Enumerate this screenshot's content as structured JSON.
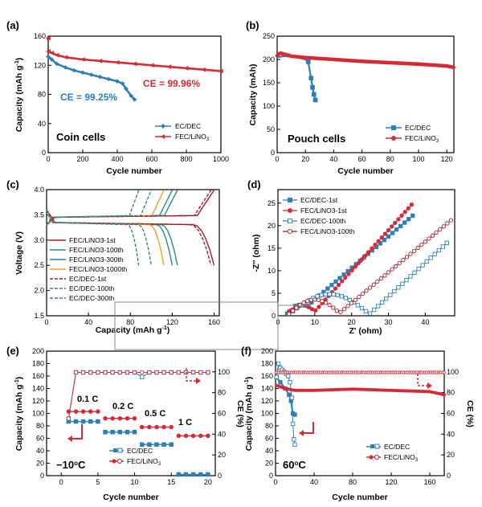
{
  "colors": {
    "blue": "#2e7fb8",
    "red": "#d62a35",
    "teal": "#2a8a8a",
    "orange": "#f0a020",
    "darkred": "#a01e28"
  },
  "chart_data": [
    {
      "panel": "(a)",
      "type": "line",
      "xlabel": "Cycle number",
      "ylabel": "Capacity (mAh g-1)",
      "xlim": [
        0,
        1000
      ],
      "ylim": [
        0,
        160
      ],
      "xticks": [
        0,
        200,
        400,
        600,
        800,
        1000
      ],
      "yticks": [
        0,
        40,
        80,
        120,
        160
      ],
      "annotations": [
        {
          "text": "CE = 99.25%",
          "color": "blue"
        },
        {
          "text": "CE = 99.96%",
          "color": "red"
        },
        {
          "text": "Coin cells",
          "color": "black"
        }
      ],
      "legend": [
        "EC/DEC",
        "FEC/LiNO3"
      ],
      "series": [
        {
          "name": "EC/DEC",
          "color": "blue",
          "x": [
            0,
            20,
            50,
            100,
            150,
            200,
            250,
            300,
            350,
            400,
            430,
            450,
            480,
            500
          ],
          "y": [
            132,
            128,
            122,
            117,
            113,
            110,
            107,
            104,
            101,
            98,
            95,
            88,
            78,
            73
          ]
        },
        {
          "name": "FEC/LiNO3",
          "color": "red",
          "x": [
            0,
            20,
            50,
            100,
            200,
            300,
            400,
            500,
            600,
            700,
            800,
            900,
            1000
          ],
          "y": [
            139,
            137,
            134,
            131,
            128,
            126,
            124,
            122,
            120,
            118,
            116,
            114,
            112
          ]
        }
      ]
    },
    {
      "panel": "(b)",
      "type": "line",
      "xlabel": "Cycle number",
      "ylabel": "Capacity (mAh)",
      "xlim": [
        0,
        125
      ],
      "ylim": [
        0,
        250
      ],
      "xticks": [
        0,
        20,
        40,
        60,
        80,
        100,
        120
      ],
      "yticks": [
        0,
        50,
        100,
        150,
        200,
        250
      ],
      "annotations": [
        {
          "text": "Pouch cells",
          "color": "black"
        }
      ],
      "legend": [
        "EC/DEC",
        "FEC/LiNO3"
      ],
      "series": [
        {
          "name": "EC/DEC",
          "color": "blue",
          "x": [
            0,
            5,
            10,
            15,
            20,
            22,
            24,
            25,
            26,
            27
          ],
          "y": [
            205,
            207,
            206,
            204,
            200,
            195,
            160,
            140,
            125,
            113
          ]
        },
        {
          "name": "FEC/LiNO3",
          "color": "red",
          "x": [
            0,
            2,
            10,
            20,
            40,
            60,
            80,
            100,
            120,
            125
          ],
          "y": [
            208,
            214,
            207,
            204,
            200,
            196,
            193,
            190,
            186,
            183
          ]
        }
      ]
    },
    {
      "panel": "(c)",
      "type": "line",
      "xlabel": "Capacity (mAh g-1)",
      "ylabel": "Voltage (V)",
      "xlim": [
        0,
        165
      ],
      "ylim": [
        1.5,
        4.0
      ],
      "xticks": [
        0,
        40,
        80,
        120,
        160
      ],
      "yticks": [
        1.5,
        2.0,
        2.5,
        3.0,
        3.5,
        4.0
      ],
      "legend": [
        "FEC/LiNO3-1st",
        "FEC/LiNO3-100th",
        "FEC/LiNO3-300th",
        "FEC/LiNO3-1000th",
        "EC/DEC-1st",
        "EC/DEC-100th",
        "EC/DEC-300th"
      ]
    },
    {
      "panel": "(d)",
      "type": "scatter",
      "xlabel": "Z' (ohm)",
      "ylabel": "-Z'' (ohm)",
      "xlim": [
        0,
        48
      ],
      "ylim": [
        0,
        28
      ],
      "xticks": [
        0,
        10,
        20,
        30,
        40
      ],
      "yticks": [
        0,
        5,
        10,
        15,
        20,
        25
      ],
      "legend": [
        "EC/DEC-1st",
        "FEC/LiNO3-1st",
        "EC/DEC-100th",
        "FEC/LiNO3-100th"
      ]
    },
    {
      "panel": "(e)",
      "type": "line",
      "xlabel": "Cycle number",
      "ylabel": "Capacity (mAh g-1)",
      "y2label": "CE (%)",
      "xlim": [
        -2,
        21
      ],
      "ylim": [
        0,
        200
      ],
      "y2lim": [
        0,
        120
      ],
      "xticks": [
        0,
        5,
        10,
        15,
        20
      ],
      "yticks": [
        0,
        20,
        40,
        60,
        80,
        100,
        120,
        140,
        160,
        180,
        200
      ],
      "y2ticks": [
        0,
        20,
        40,
        60,
        80,
        100
      ],
      "annotations": [
        {
          "text": "0.1 C"
        },
        {
          "text": "0.2 C"
        },
        {
          "text": "0.5 C"
        },
        {
          "text": "1 C"
        },
        {
          "text": "−10oC"
        }
      ],
      "legend": [
        "EC/DEC",
        "FEC/LiNO3"
      ],
      "series": [
        {
          "name": "EC/DEC",
          "color": "blue",
          "x": [
            1,
            2,
            3,
            4,
            5,
            6,
            7,
            8,
            9,
            10,
            11,
            12,
            13,
            14,
            15,
            16,
            17,
            18,
            19,
            20
          ],
          "y": [
            87,
            87,
            87,
            87,
            87,
            70,
            70,
            70,
            70,
            70,
            50,
            50,
            50,
            50,
            50,
            2,
            2,
            2,
            2,
            2
          ]
        },
        {
          "name": "FEC/LiNO3",
          "color": "red",
          "x": [
            1,
            2,
            3,
            4,
            5,
            6,
            7,
            8,
            9,
            10,
            11,
            12,
            13,
            14,
            15,
            16,
            17,
            18,
            19,
            20
          ],
          "y": [
            103,
            103,
            103,
            103,
            103,
            92,
            92,
            92,
            92,
            92,
            78,
            78,
            78,
            78,
            78,
            64,
            64,
            64,
            64,
            64
          ]
        }
      ]
    },
    {
      "panel": "(f)",
      "type": "line",
      "xlabel": "Cycle number",
      "ylabel": "Capacity (mAh g-1)",
      "y2label": "CE (%)",
      "xlim": [
        0,
        175
      ],
      "ylim": [
        0,
        200
      ],
      "y2lim": [
        0,
        120
      ],
      "xticks": [
        0,
        40,
        80,
        120,
        160
      ],
      "yticks": [
        0,
        20,
        40,
        60,
        80,
        100,
        120,
        140,
        160,
        180,
        200
      ],
      "y2ticks": [
        0,
        20,
        40,
        60,
        80,
        100
      ],
      "annotations": [
        {
          "text": "60oC"
        }
      ],
      "legend": [
        "EC/DEC",
        "FEC/LiNO3"
      ],
      "series": [
        {
          "name": "EC/DEC",
          "color": "blue",
          "x": [
            1,
            5,
            10,
            14,
            16,
            18,
            20
          ],
          "y": [
            158,
            150,
            140,
            130,
            120,
            100,
            98
          ]
        },
        {
          "name": "FEC/LiNO3",
          "color": "red",
          "x": [
            1,
            10,
            20,
            40,
            60,
            80,
            100,
            120,
            140,
            160,
            175
          ],
          "y": [
            145,
            140,
            137,
            137,
            138,
            139,
            138,
            137,
            136,
            135,
            130
          ]
        }
      ]
    }
  ],
  "labels": {
    "a": {
      "panel": "(a)",
      "xlabel": "Cycle number",
      "ylabel": "Capacity (mAh g",
      "ce1": "CE = 99.25%",
      "ce2": "CE = 99.96%",
      "cell": "Coin cells",
      "leg1": "EC/DEC",
      "leg2": "FEC/LiNO"
    },
    "b": {
      "panel": "(b)",
      "xlabel": "Cycle number",
      "ylabel": "Capacity (mAh)",
      "cell": "Pouch cells",
      "leg1": "EC/DEC",
      "leg2": "FEC/LiNO"
    },
    "c": {
      "panel": "(c)",
      "xlabel": "Capacity (mAh g",
      "ylabel": "Voltage (V)"
    },
    "d": {
      "panel": "(d)",
      "xlabel": "Z' (ohm)",
      "ylabel": "-Z'' (ohm)"
    },
    "e": {
      "panel": "(e)",
      "xlabel": "Cycle number",
      "ylabel": "Capacity (mAh g",
      "y2label": "CE (%)",
      "temp": "−10",
      "r1": "0.1 C",
      "r2": "0.2 C",
      "r3": "0.5 C",
      "r4": "1 C",
      "leg1": "EC/DEC",
      "leg2": "FEC/LiNO"
    },
    "f": {
      "panel": "(f)",
      "xlabel": "Cycle number",
      "ylabel": "Capacity (mAh g",
      "y2label": "CE (%)",
      "temp": "60",
      "leg1": "EC/DEC",
      "leg2": "FEC/LiNO"
    }
  }
}
